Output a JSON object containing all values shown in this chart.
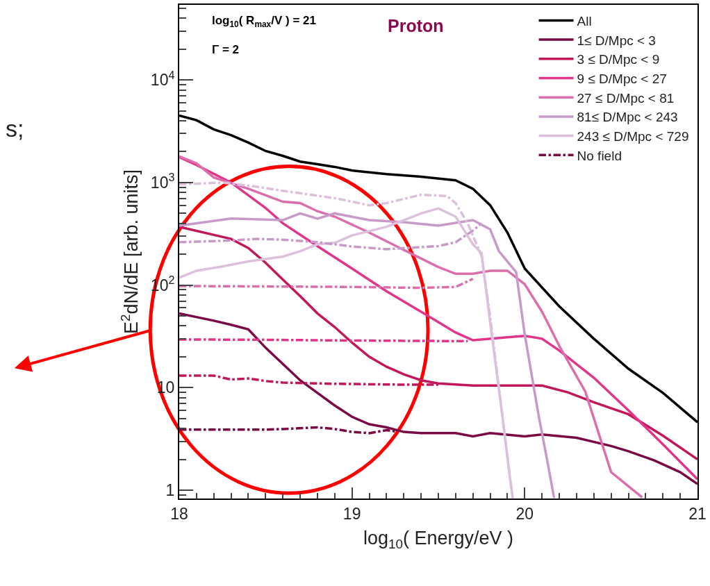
{
  "chart_data": {
    "type": "line",
    "xlabel": "log$_{10}$( Energy/eV )",
    "ylabel": "E$^{2}$dN/dE [arb. units]",
    "annotations": [
      "log$_{10}$( R$_{max}$/V ) = 21",
      "Γ = 2",
      "Proton",
      "s;"
    ],
    "xlim": [
      18,
      21
    ],
    "xticks": [
      18,
      19,
      20,
      21
    ],
    "ylim": [
      0.83,
      54000
    ],
    "log": "y",
    "yticks": [
      1,
      10,
      {
        "value": 100,
        "label": "10$^{2}$"
      },
      {
        "value": 1000,
        "label": "10$^{3}$"
      },
      {
        "value": 10000,
        "label": "10$^{4}$"
      }
    ],
    "grid": false,
    "legend": "top right",
    "marker": "none",
    "series": [
      {
        "name": "All",
        "color": "#000000",
        "line_style": "solid",
        "x": [
          18.0,
          18.1,
          18.2,
          18.3,
          18.4,
          18.5,
          18.6,
          18.7,
          18.8,
          18.9,
          19.0,
          19.2,
          19.4,
          19.6,
          19.7,
          19.8,
          19.9,
          20.0,
          20.2,
          20.4,
          20.6,
          20.8,
          21.0
        ],
        "values": [
          4500,
          4050,
          3300,
          2900,
          2450,
          2030,
          1820,
          1600,
          1510,
          1420,
          1310,
          1210,
          1140,
          1050,
          870,
          600,
          325,
          145,
          62,
          30,
          15.3,
          8.9,
          4.6
        ]
      },
      {
        "name": "1≤ D/Mpc < 3",
        "color": "#7a0a45",
        "line_style": "solid",
        "x": [
          18.0,
          18.2,
          18.3,
          18.4,
          18.5,
          18.6,
          18.7,
          18.8,
          18.9,
          19.0,
          19.1,
          19.2,
          19.3,
          19.4,
          19.6,
          19.7,
          19.8,
          20.0,
          20.1,
          20.3,
          20.5,
          20.6,
          20.75,
          20.9,
          21.0
        ],
        "values": [
          53,
          45,
          41,
          37,
          24.5,
          17,
          11.8,
          8.9,
          6.7,
          5.2,
          4.4,
          4.1,
          3.7,
          3.6,
          3.6,
          3.35,
          3.6,
          3.35,
          3.5,
          3.25,
          2.7,
          2.4,
          1.95,
          1.5,
          1.15
        ]
      },
      {
        "name": "3 ≤ D/Mpc < 9",
        "color": "#c2185b",
        "line_style": "solid",
        "x": [
          18.0,
          18.3,
          18.4,
          18.5,
          18.6,
          18.7,
          18.8,
          18.9,
          19.0,
          19.1,
          19.2,
          19.3,
          19.4,
          19.5,
          19.7,
          20.0,
          20.1,
          20.25,
          20.4,
          20.6,
          20.8,
          21.0
        ],
        "values": [
          370,
          282,
          230,
          165,
          113,
          78,
          53,
          39,
          27.5,
          20,
          16,
          13.5,
          11.8,
          11,
          10.5,
          10.5,
          10.5,
          9.0,
          7.2,
          5.5,
          3.4,
          2.0
        ]
      },
      {
        "name": "9 ≤ D/Mpc < 27",
        "color": "#e0358a",
        "line_style": "solid",
        "x": [
          18.0,
          18.1,
          18.3,
          18.5,
          18.6,
          18.8,
          19.0,
          19.2,
          19.4,
          19.6,
          19.7,
          19.9,
          20.0,
          20.1,
          20.2,
          20.4,
          20.6,
          20.8,
          21.0
        ],
        "values": [
          1770,
          1480,
          1000,
          565,
          400,
          240,
          145,
          87,
          55,
          34.5,
          29,
          31,
          32,
          30,
          23,
          12.5,
          6.0,
          2.8,
          1.28
        ]
      },
      {
        "name": "27 ≤ D/Mpc < 81",
        "color": "#dc6eac",
        "line_style": "solid",
        "x": [
          18.0,
          18.1,
          18.2,
          18.4,
          18.6,
          18.7,
          18.8,
          18.9,
          19.1,
          19.3,
          19.5,
          19.6,
          19.7,
          19.8,
          19.9,
          20.0,
          20.1,
          20.2,
          20.35,
          20.5,
          20.68
        ],
        "values": [
          1800,
          1540,
          1120,
          870,
          650,
          630,
          525,
          465,
          325,
          220,
          150,
          129,
          129,
          138,
          138,
          102,
          55,
          25.5,
          9.2,
          1.5,
          0.85
        ]
      },
      {
        "name": "81≤ D/Mpc < 243",
        "color": "#c79ac9",
        "line_style": "solid",
        "x": [
          18.0,
          18.3,
          18.6,
          18.7,
          18.8,
          18.9,
          19.1,
          19.3,
          19.5,
          19.7,
          19.8,
          19.85,
          19.95,
          20.0,
          20.08,
          20.13,
          20.17
        ],
        "values": [
          380,
          445,
          430,
          500,
          445,
          500,
          430,
          410,
          380,
          430,
          350,
          215,
          134,
          33,
          5.4,
          1.95,
          0.84
        ]
      },
      {
        "name": "243 ≤ D/Mpc < 729",
        "color": "#dcc0dc",
        "line_style": "solid",
        "x": [
          18.0,
          18.1,
          18.25,
          18.4,
          18.6,
          18.7,
          18.8,
          18.9,
          19.0,
          19.2,
          19.3,
          19.4,
          19.5,
          19.6,
          19.7,
          19.75,
          19.8,
          19.87,
          19.91,
          19.93
        ],
        "values": [
          118,
          138,
          152,
          170,
          190,
          214,
          250,
          258,
          305,
          370,
          430,
          500,
          560,
          465,
          250,
          205,
          43,
          5.4,
          1.5,
          0.84
        ]
      },
      {
        "name": "No field",
        "color": "#7a0a45",
        "line_style": "dashdot",
        "x": [
          18.0,
          18.5,
          18.6,
          18.8,
          18.9,
          19.0,
          19.1,
          19.2,
          19.25
        ],
        "values": [
          3.9,
          3.9,
          3.95,
          4.1,
          3.95,
          3.7,
          3.6,
          3.85,
          3.75
        ]
      },
      {
        "color": "#c2185b",
        "line_style": "dashdot",
        "x": [
          18.0,
          18.2,
          18.3,
          18.4,
          18.5,
          18.6,
          18.9,
          19.3,
          19.5
        ],
        "values": [
          13.1,
          13.1,
          12,
          12.3,
          11.6,
          11.2,
          10.9,
          10.7,
          10.7
        ]
      },
      {
        "color": "#e0358a",
        "line_style": "dashdot",
        "x": [
          18.0,
          18.5,
          19.0,
          19.5,
          19.67
        ],
        "values": [
          29.5,
          29.3,
          28.8,
          28.5,
          28.5
        ]
      },
      {
        "color": "#dc6eac",
        "line_style": "dashdot",
        "x": [
          18.0,
          18.5,
          19.0,
          19.4,
          19.6,
          19.7
        ],
        "values": [
          98,
          97,
          96,
          94,
          96,
          115
        ]
      },
      {
        "color": "#c79ac9",
        "line_style": "dashdot",
        "x": [
          18.0,
          18.25,
          18.45,
          18.6,
          18.8,
          19.0,
          19.2,
          19.5,
          19.6,
          19.7,
          19.75
        ],
        "values": [
          262,
          270,
          282,
          277,
          262,
          238,
          224,
          240,
          262,
          340,
          400
        ]
      },
      {
        "color": "#dcc0dc",
        "line_style": "dashdot",
        "x": [
          18.0,
          18.25,
          18.45,
          18.6,
          18.9,
          19.1,
          19.2,
          19.4,
          19.55,
          19.6,
          19.67,
          19.75,
          19.8,
          19.87,
          19.93
        ],
        "values": [
          960,
          1000,
          910,
          830,
          705,
          600,
          630,
          760,
          740,
          630,
          400,
          192,
          49,
          5.4,
          0.83
        ]
      }
    ]
  }
}
